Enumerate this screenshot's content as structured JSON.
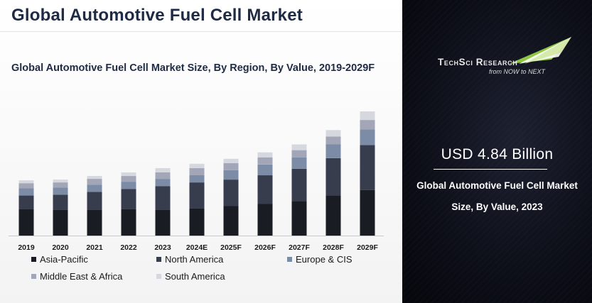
{
  "page": {
    "title": "Global Automotive Fuel Cell Market"
  },
  "chart_data": {
    "type": "bar",
    "stacked": true,
    "title": "Global Automotive Fuel Cell Market Size, By Region, By Value, 2019-2029F",
    "xlabel": "",
    "ylabel": "",
    "grid": false,
    "legend_position": "bottom",
    "categories": [
      "2019",
      "2020",
      "2021",
      "2022",
      "2023",
      "2024E",
      "2025F",
      "2026F",
      "2027F",
      "2028F",
      "2029F"
    ],
    "series": [
      {
        "name": "Asia-Pacific",
        "color": "#1a1c24",
        "values": [
          37,
          36,
          36,
          37,
          36,
          38,
          41,
          44,
          48,
          56,
          64
        ]
      },
      {
        "name": "North America",
        "color": "#373d4d",
        "values": [
          19,
          21,
          25,
          28,
          33,
          36,
          37,
          40,
          45,
          52,
          62
        ]
      },
      {
        "name": "Europe & CIS",
        "color": "#7c8ba6",
        "values": [
          10,
          10,
          10,
          10,
          10,
          10,
          13,
          15,
          16,
          19,
          22
        ]
      },
      {
        "name": "Middle East & Africa",
        "color": "#a3a6b6",
        "values": [
          7,
          7,
          8,
          8,
          9,
          10,
          10,
          10,
          10,
          11,
          13
        ]
      },
      {
        "name": "South America",
        "color": "#d6d8e0",
        "values": [
          4,
          4,
          4,
          5,
          6,
          6,
          6,
          7,
          8,
          9,
          12
        ]
      }
    ]
  },
  "sidebar": {
    "logo_text": "TechSci Research",
    "logo_tagline": "from NOW to NEXT",
    "logo_colors": [
      "#8ec63f",
      "#ffffff"
    ],
    "value": "USD 4.84 Billion",
    "value_desc_line1": "Global Automotive Fuel Cell Market",
    "value_desc_line2": "Size, By Value, 2023"
  }
}
